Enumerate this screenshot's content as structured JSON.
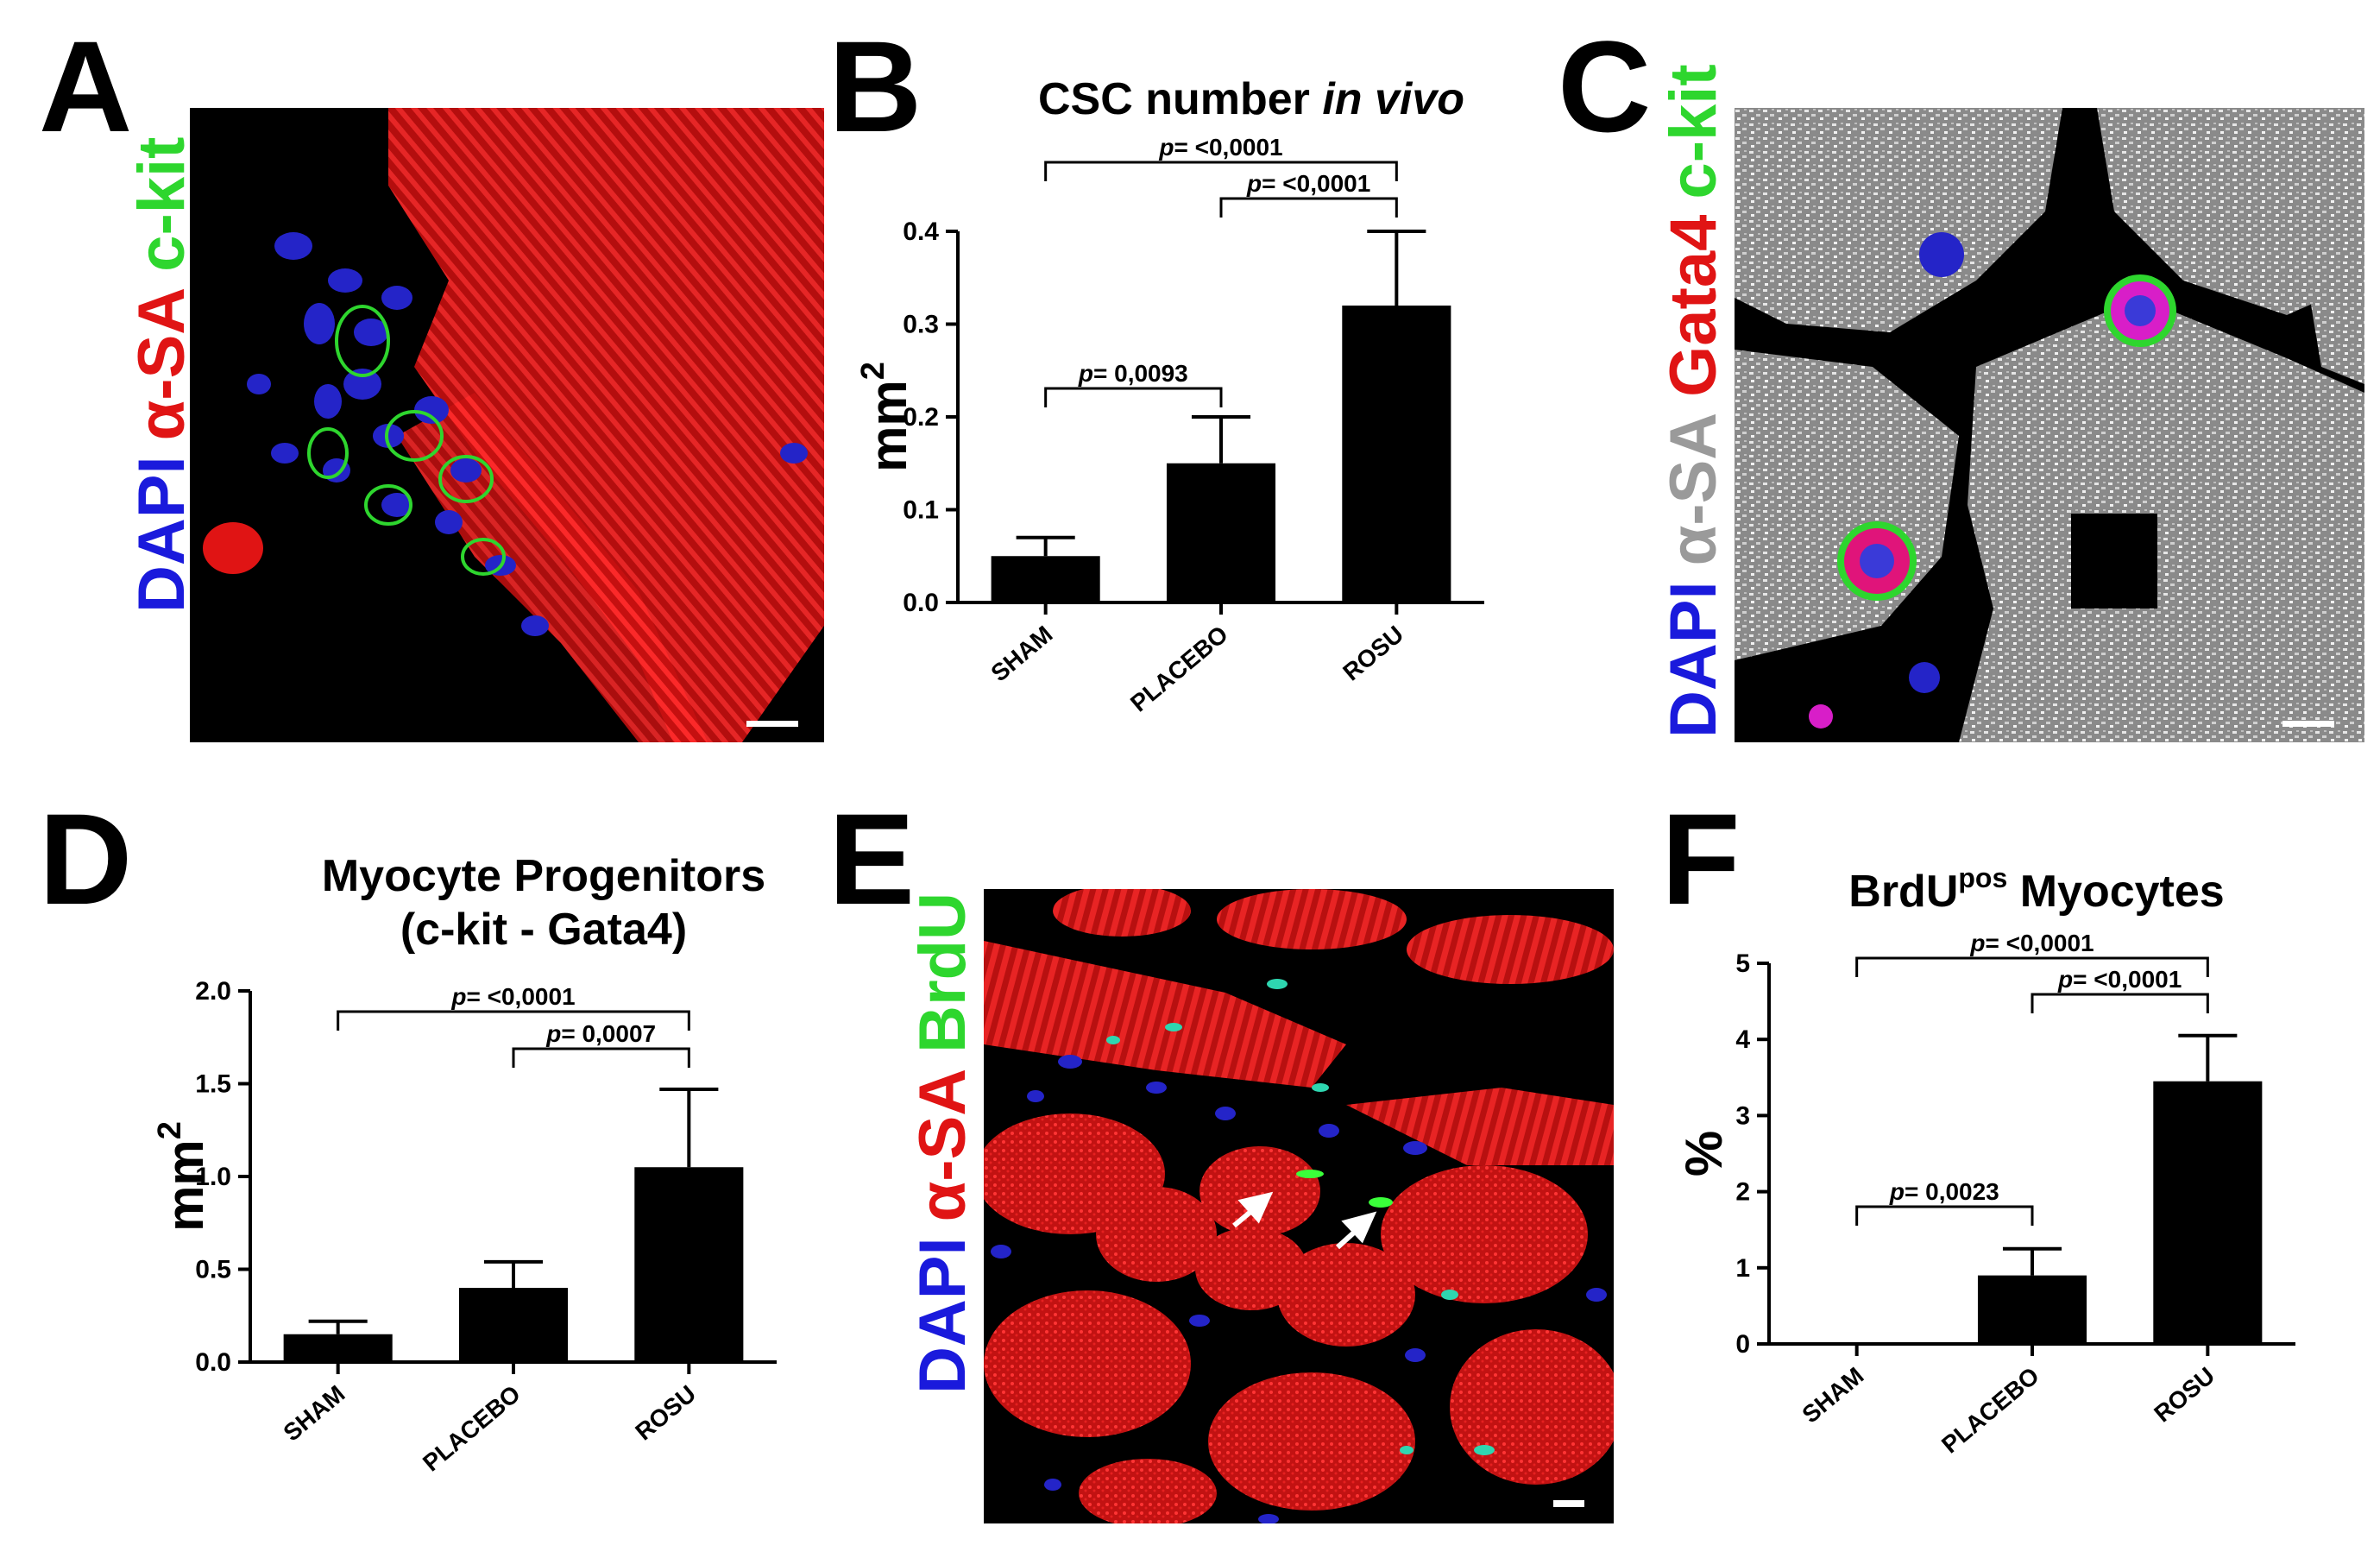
{
  "panels": {
    "A": {
      "letter": "A",
      "labels": [
        "DAPI",
        "α-SA",
        "c-kit"
      ],
      "label_colors": [
        "#1a1adc",
        "#e01414",
        "#2ed62e"
      ]
    },
    "B": {
      "letter": "B"
    },
    "C": {
      "letter": "C",
      "labels": [
        "DAPI",
        "α-SA",
        "Gata4",
        "c-kit"
      ],
      "label_colors": [
        "#1a1adc",
        "#9a9a9a",
        "#e01414",
        "#2ed62e"
      ]
    },
    "D": {
      "letter": "D"
    },
    "E": {
      "letter": "E",
      "labels": [
        "DAPI",
        "α-SA",
        "BrdU"
      ],
      "label_colors": [
        "#1a1adc",
        "#e01414",
        "#2ed62e"
      ]
    },
    "F": {
      "letter": "F"
    }
  },
  "chart_data": [
    {
      "id": "B",
      "type": "bar",
      "title": "CSC number",
      "title_italic": "in vivo",
      "ylabel": "mm",
      "ylabel_sup": "2",
      "categories": [
        "SHAM",
        "PLACEBO",
        "ROSU"
      ],
      "values": [
        0.05,
        0.15,
        0.32
      ],
      "errors": [
        0.02,
        0.05,
        0.08
      ],
      "ylim": [
        0,
        0.4
      ],
      "yticks": [
        "0.0",
        "0.1",
        "0.2",
        "0.3",
        "0.4"
      ],
      "bar_color": "#000000",
      "comparisons": [
        {
          "from": 0,
          "to": 2,
          "p_prefix": "p",
          "p_text": "= <0,0001"
        },
        {
          "from": 1,
          "to": 2,
          "p_prefix": "p",
          "p_text": "= <0,0001"
        },
        {
          "from": 0,
          "to": 1,
          "p_prefix": "p",
          "p_text": "= 0,0093"
        }
      ]
    },
    {
      "id": "D",
      "type": "bar",
      "title": "Myocyte Progenitors",
      "title2": "(c-kit - Gata4)",
      "ylabel": "mm",
      "ylabel_sup": "2",
      "categories": [
        "SHAM",
        "PLACEBO",
        "ROSU"
      ],
      "values": [
        0.15,
        0.4,
        1.05
      ],
      "errors": [
        0.07,
        0.14,
        0.42
      ],
      "ylim": [
        0,
        2.0
      ],
      "yticks": [
        "0.0",
        "0.5",
        "1.0",
        "1.5",
        "2.0"
      ],
      "bar_color": "#000000",
      "comparisons": [
        {
          "from": 0,
          "to": 2,
          "p_prefix": "p",
          "p_text": "= <0,0001"
        },
        {
          "from": 1,
          "to": 2,
          "p_prefix": "p",
          "p_text": "= 0,0007"
        }
      ]
    },
    {
      "id": "F",
      "type": "bar",
      "title": "BrdU",
      "title_sup": "pos",
      "title_after": " Myocytes",
      "ylabel": "%",
      "categories": [
        "SHAM",
        "PLACEBO",
        "ROSU"
      ],
      "values": [
        0.02,
        0.9,
        3.45
      ],
      "errors": [
        0.0,
        0.35,
        0.6
      ],
      "ylim": [
        0,
        5
      ],
      "yticks": [
        "0",
        "1",
        "2",
        "3",
        "4",
        "5"
      ],
      "bar_color": "#000000",
      "comparisons": [
        {
          "from": 0,
          "to": 2,
          "p_prefix": "p",
          "p_text": "= <0,0001"
        },
        {
          "from": 1,
          "to": 2,
          "p_prefix": "p",
          "p_text": "= <0,0001"
        },
        {
          "from": 0,
          "to": 1,
          "p_prefix": "p",
          "p_text": "= 0,0023"
        }
      ]
    }
  ]
}
